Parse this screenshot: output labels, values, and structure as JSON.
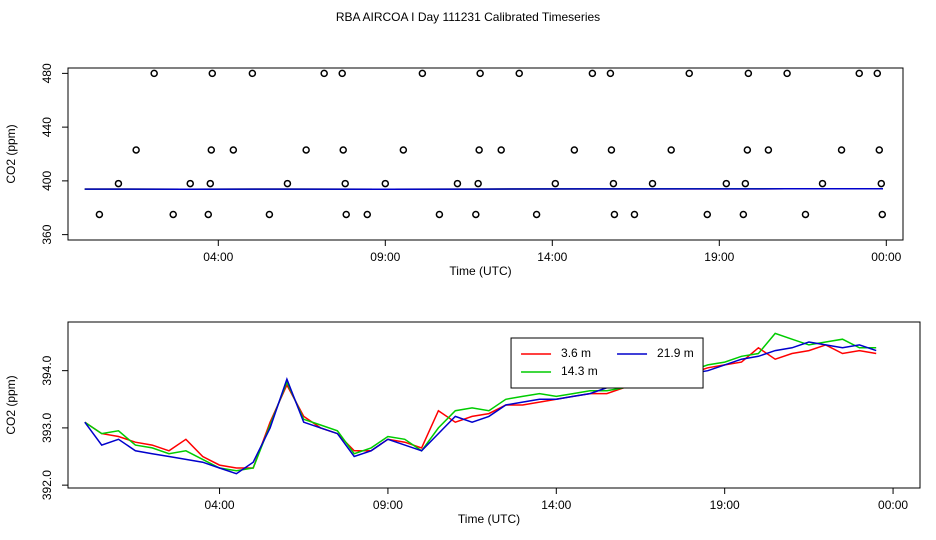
{
  "title": "RBA AIRCOA I  Day 111231  Calibrated Timeseries",
  "chart_data": [
    {
      "type": "scatter",
      "xlabel": "Time (UTC)",
      "ylabel": "CO2 (ppm)",
      "xlim": [
        -0.5,
        24.5
      ],
      "ylim": [
        356,
        484
      ],
      "xticks": [
        {
          "value": 4,
          "label": "04:00"
        },
        {
          "value": 9,
          "label": "09:00"
        },
        {
          "value": 14,
          "label": "14:00"
        },
        {
          "value": 19,
          "label": "19:00"
        },
        {
          "value": 24,
          "label": "00:00"
        }
      ],
      "yticks": [
        360,
        400,
        440,
        480
      ],
      "series": [
        {
          "type": "scatter",
          "color": "#000000",
          "x": [
            2.08,
            3.82,
            5.02,
            7.17,
            7.71,
            10.11,
            11.84,
            13.01,
            15.2,
            15.74,
            18.1,
            19.87,
            21.03,
            23.19,
            23.73,
            1.54,
            3.79,
            4.45,
            6.63,
            7.74,
            9.54,
            11.81,
            12.47,
            14.66,
            15.77,
            17.56,
            19.84,
            20.47,
            22.66,
            23.79,
            1.01,
            3.16,
            3.76,
            6.07,
            7.8,
            9.0,
            11.16,
            11.78,
            14.09,
            15.83,
            17.0,
            19.21,
            19.78,
            22.09,
            23.85,
            0.44,
            2.65,
            3.7,
            5.53,
            7.83,
            8.46,
            10.62,
            11.71,
            13.53,
            15.86,
            16.46,
            18.64,
            19.72,
            21.58,
            23.88
          ],
          "values": [
            480,
            480,
            480,
            480,
            480,
            480,
            480,
            480,
            480,
            480,
            480,
            480,
            480,
            480,
            480,
            423,
            423,
            423,
            423,
            423,
            423,
            423,
            423,
            423,
            423,
            423,
            423,
            423,
            423,
            423,
            398,
            398,
            398,
            398,
            398,
            398,
            398,
            398,
            398,
            398,
            398,
            398,
            398,
            398,
            398,
            375,
            375,
            375,
            375,
            375,
            375,
            375,
            375,
            375,
            375,
            375,
            375,
            375,
            375,
            375
          ]
        },
        {
          "type": "line",
          "color": "#ff0000",
          "x": [
            0,
            3,
            6,
            9,
            12,
            15,
            18,
            21,
            23.9
          ],
          "values": [
            393.9,
            393.8,
            393.9,
            393.7,
            393.9,
            394.0,
            394.0,
            394.1,
            394.2
          ]
        },
        {
          "type": "line",
          "color": "#00cc00",
          "x": [
            0,
            3,
            6,
            9,
            12,
            15,
            18,
            21,
            23.9
          ],
          "values": [
            393.9,
            393.8,
            393.9,
            393.8,
            393.9,
            394.0,
            394.1,
            394.2,
            394.2
          ]
        },
        {
          "type": "line",
          "color": "#0000cc",
          "x": [
            0,
            3,
            6,
            9,
            12,
            15,
            18,
            21,
            23.9
          ],
          "values": [
            393.9,
            393.7,
            393.9,
            393.7,
            393.9,
            394.0,
            394.0,
            394.1,
            394.2
          ]
        }
      ]
    },
    {
      "type": "line",
      "xlabel": "Time (UTC)",
      "ylabel": "CO2 (ppm)",
      "legend": "top",
      "xlim": [
        -0.5,
        24.8
      ],
      "ylim": [
        391.95,
        394.85
      ],
      "xticks": [
        {
          "value": 4,
          "label": "04:00"
        },
        {
          "value": 9,
          "label": "09:00"
        },
        {
          "value": 14,
          "label": "14:00"
        },
        {
          "value": 19,
          "label": "19:00"
        },
        {
          "value": 24,
          "label": "00:00"
        }
      ],
      "yticks": [
        {
          "value": 392,
          "label": "392.0"
        },
        {
          "value": 393,
          "label": "393.0"
        },
        {
          "value": 394,
          "label": "394.0"
        }
      ],
      "x": [
        0,
        0.5,
        1,
        1.5,
        2,
        2.5,
        3,
        3.5,
        4,
        4.5,
        5,
        5.5,
        6,
        6.5,
        7,
        7.5,
        8,
        8.5,
        9,
        9.5,
        10,
        10.5,
        11,
        11.5,
        12,
        12.5,
        13,
        13.5,
        14,
        14.5,
        15,
        15.5,
        16,
        16.5,
        17,
        17.5,
        18,
        18.5,
        19,
        19.5,
        20,
        20.5,
        21,
        21.5,
        22,
        22.5,
        23,
        23.5
      ],
      "series": [
        {
          "name": "3.6 m",
          "color": "#ff0000",
          "values": [
            393.1,
            392.9,
            392.85,
            392.75,
            392.7,
            392.6,
            392.8,
            392.5,
            392.35,
            392.3,
            392.3,
            393.1,
            393.75,
            393.2,
            393.0,
            392.9,
            392.6,
            392.6,
            392.8,
            392.75,
            392.65,
            393.3,
            393.1,
            393.2,
            393.25,
            393.4,
            393.4,
            393.45,
            393.5,
            393.55,
            393.6,
            393.6,
            393.7,
            393.7,
            393.75,
            393.8,
            393.95,
            394.05,
            394.1,
            394.15,
            394.4,
            394.2,
            394.3,
            394.35,
            394.45,
            394.3,
            394.35,
            394.3
          ]
        },
        {
          "name": "14.3 m",
          "color": "#00cc00",
          "values": [
            393.1,
            392.9,
            392.95,
            392.7,
            392.65,
            392.55,
            392.6,
            392.45,
            392.3,
            392.25,
            392.3,
            393.05,
            393.8,
            393.15,
            393.05,
            392.95,
            392.55,
            392.65,
            392.85,
            392.8,
            392.6,
            393.0,
            393.3,
            393.35,
            393.3,
            393.5,
            393.55,
            393.6,
            393.55,
            393.6,
            393.65,
            393.65,
            393.7,
            393.75,
            393.8,
            393.9,
            394.0,
            394.1,
            394.15,
            394.25,
            394.3,
            394.65,
            394.55,
            394.45,
            394.5,
            394.55,
            394.4,
            394.4
          ]
        },
        {
          "name": "21.9 m",
          "color": "#0000cc",
          "values": [
            393.1,
            392.7,
            392.8,
            392.6,
            392.55,
            392.5,
            392.45,
            392.4,
            392.3,
            392.2,
            392.4,
            393.0,
            393.85,
            393.1,
            393.0,
            392.9,
            392.5,
            392.6,
            392.8,
            392.7,
            392.6,
            392.9,
            393.2,
            393.1,
            393.2,
            393.4,
            393.45,
            393.5,
            393.5,
            393.55,
            393.6,
            393.7,
            393.7,
            393.75,
            393.8,
            393.85,
            393.95,
            394.0,
            394.1,
            394.2,
            394.25,
            394.35,
            394.4,
            394.5,
            394.45,
            394.4,
            394.45,
            394.35
          ]
        }
      ]
    }
  ]
}
